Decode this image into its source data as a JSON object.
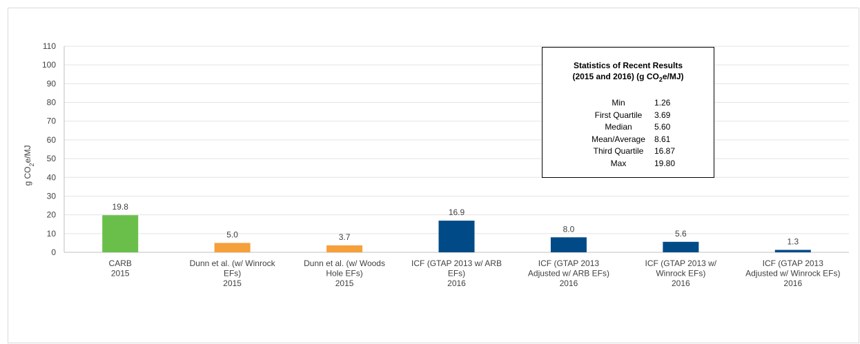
{
  "chart_data": {
    "type": "bar",
    "ylabel_prefix": "g CO",
    "ylabel_sub": "2",
    "ylabel_suffix": "e/MJ",
    "ylim": [
      0,
      110
    ],
    "yticks": [
      0,
      10,
      20,
      30,
      40,
      50,
      60,
      70,
      80,
      90,
      100,
      110
    ],
    "grid": true,
    "categories": [
      [
        "CARB",
        "2015"
      ],
      [
        "Dunn et al. (w/ Winrock",
        "EFs)",
        "2015"
      ],
      [
        "Dunn et al. (w/ Woods",
        "Hole EFs)",
        "2015"
      ],
      [
        "ICF (GTAP 2013 w/ ARB",
        "EFs)",
        "2016"
      ],
      [
        "ICF (GTAP 2013",
        "Adjusted w/ ARB EFs)",
        "2016"
      ],
      [
        "ICF (GTAP 2013 w/",
        "Winrock EFs)",
        "2016"
      ],
      [
        "ICF (GTAP 2013",
        "Adjusted w/ Winrock EFs)",
        "2016"
      ]
    ],
    "values": [
      19.8,
      5.0,
      3.7,
      16.9,
      8.0,
      5.6,
      1.3
    ],
    "data_labels": [
      "19.8",
      "5.0",
      "3.7",
      "16.9",
      "8.0",
      "5.6",
      "1.3"
    ],
    "colors": [
      "#6abf4b",
      "#f5a03a",
      "#f5a03a",
      "#004b87",
      "#004b87",
      "#004b87",
      "#004b87"
    ],
    "gridline_color": "#e3e3e3",
    "axis_color": "#bfbfbf"
  },
  "stats_box": {
    "title_line1": "Statistics of Recent Results",
    "title_line2_prefix": "(2015 and 2016) (g CO",
    "title_line2_sub": "2",
    "title_line2_suffix": "e/MJ)",
    "rows": [
      {
        "label": "Min",
        "value": "1.26"
      },
      {
        "label": "First Quartile",
        "value": "3.69"
      },
      {
        "label": "Median",
        "value": "5.60"
      },
      {
        "label": "Mean/Average",
        "value": "8.61"
      },
      {
        "label": "Third Quartile",
        "value": "16.87"
      },
      {
        "label": "Max",
        "value": "19.80"
      }
    ]
  }
}
